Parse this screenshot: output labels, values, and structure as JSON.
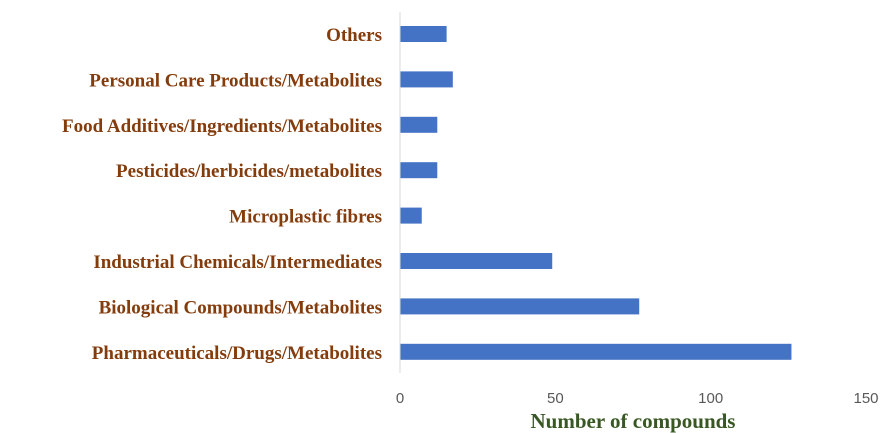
{
  "chart_data": {
    "type": "bar",
    "orientation": "horizontal",
    "categories": [
      "Others",
      "Personal Care Products/Metabolites",
      "Food Additives/Ingredients/Metabolites",
      "Pesticides/herbicides/metabolites",
      "Microplastic fibres",
      "Industrial Chemicals/Intermediates",
      "Biological Compounds/Metabolites",
      "Pharmaceuticals/Drugs/Metabolites"
    ],
    "values": [
      15,
      17,
      12,
      12,
      7,
      49,
      77,
      126
    ],
    "xlabel": "Number of compounds",
    "ylabel": "",
    "xlim": [
      0,
      150
    ],
    "x_ticks": [
      "0",
      "50",
      "100",
      "150"
    ],
    "grid": false,
    "colors": {
      "bar": "#4472C4",
      "category_label": "#843C0C",
      "axis_title": "#385723",
      "axis_line": "#D9D9D9"
    }
  }
}
